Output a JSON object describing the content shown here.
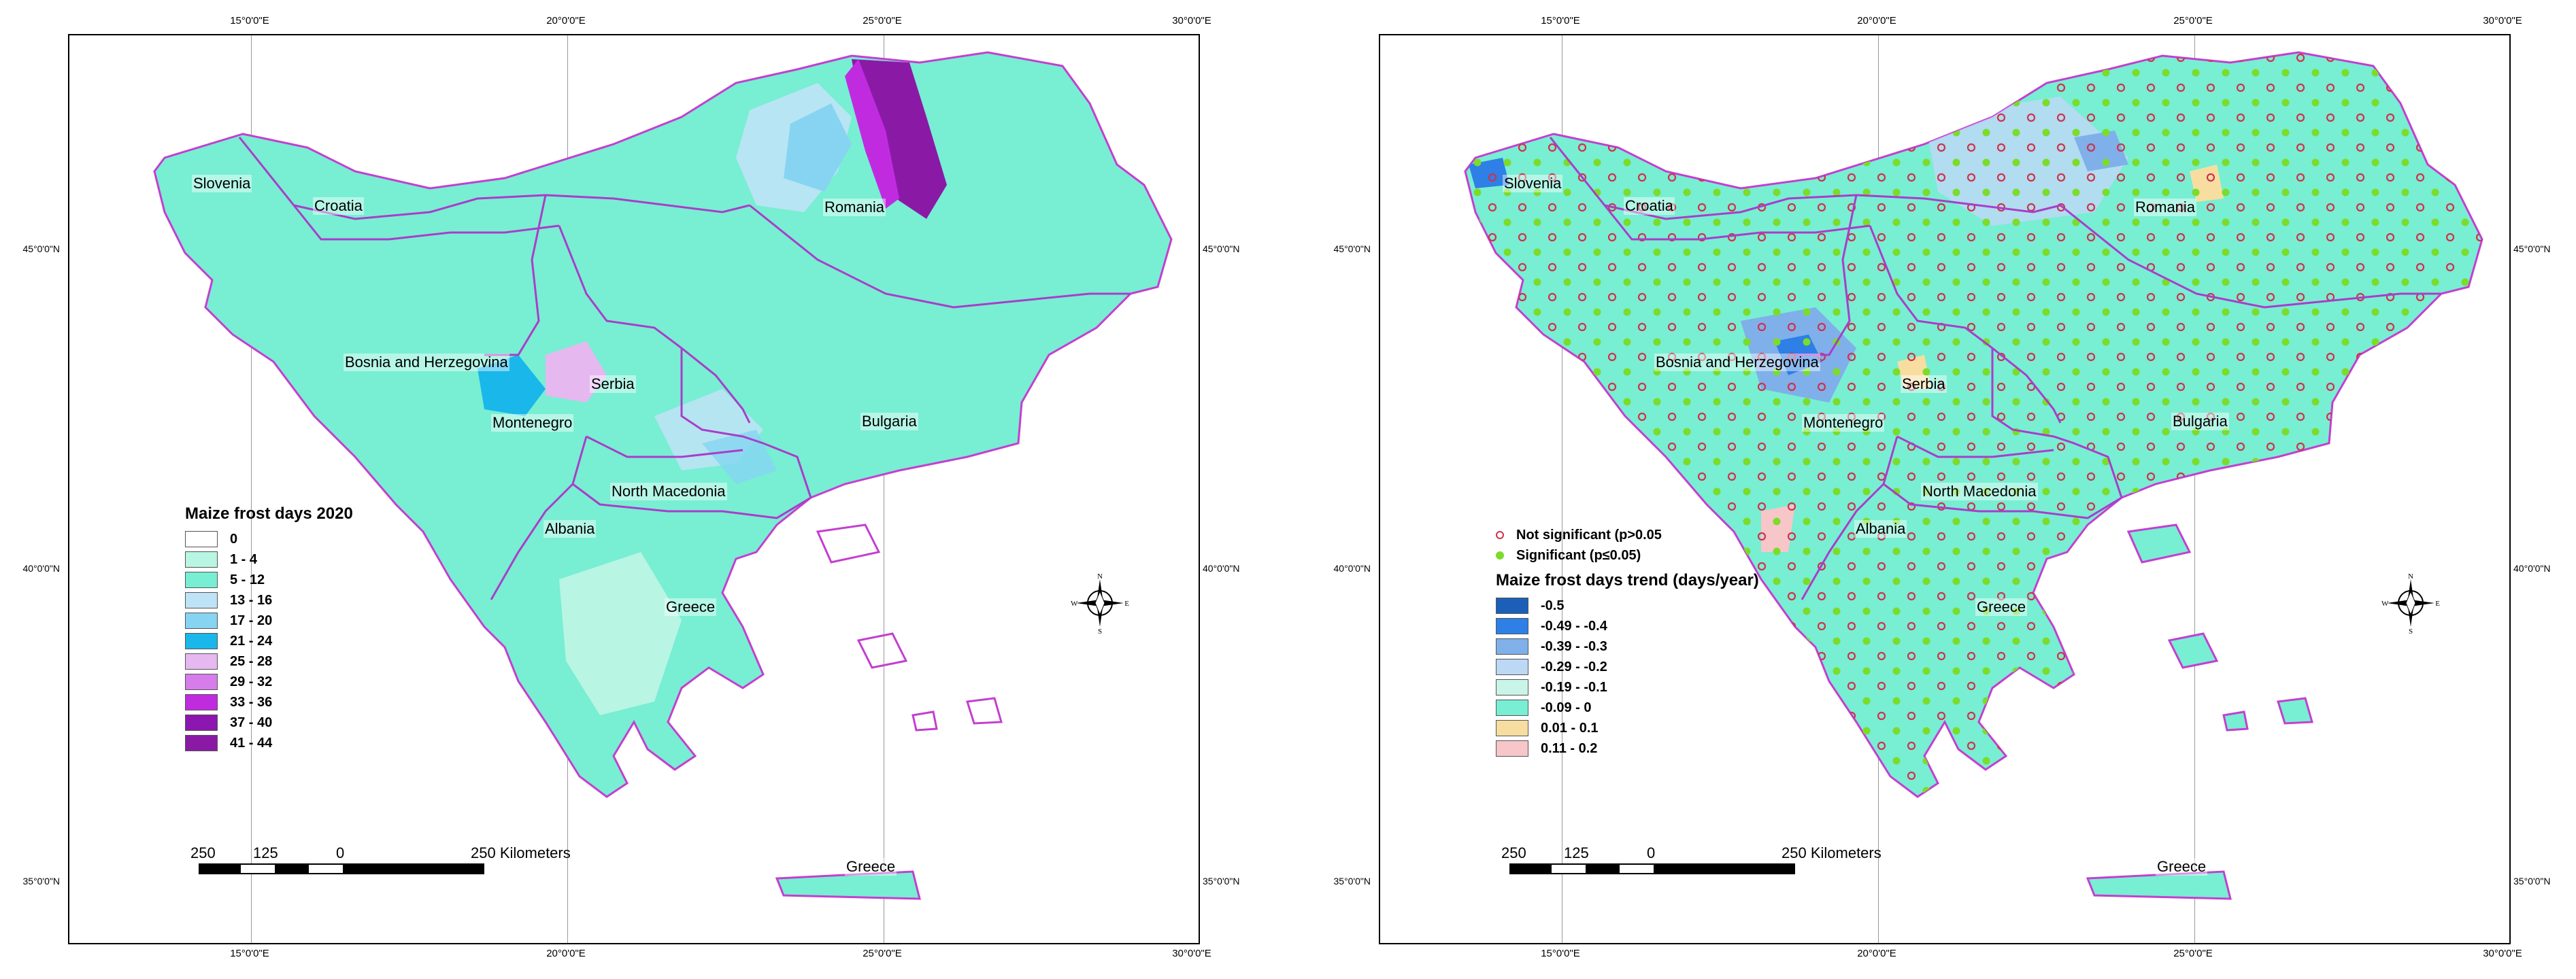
{
  "colors": {
    "land_base": "#78eed3",
    "border": "#a83ec9",
    "coast": "#c33fcf"
  },
  "graticule": {
    "top_labels": [
      "15°0'0\"E",
      "20°0'0\"E",
      "25°0'0\"E",
      "30°0'0\"E"
    ],
    "bottom_labels": [
      "15°0'0\"E",
      "20°0'0\"E",
      "25°0'0\"E",
      "30°0'0\"E"
    ],
    "left_labels": [
      "45°0'0\"N",
      "40°0'0\"N",
      "35°0'0\"N"
    ],
    "right_labels": [
      "45°0'0\"N",
      "40°0'0\"N",
      "35°0'0\"N"
    ]
  },
  "left_map": {
    "countries": [
      "Slovenia",
      "Croatia",
      "Romania",
      "Bosnia and Herzegovina",
      "Serbia",
      "Montenegro",
      "Bulgaria",
      "North Macedonia",
      "Albania",
      "Greece",
      "Greece"
    ],
    "legend": {
      "title": "Maize frost days 2020",
      "items": [
        {
          "label": "0",
          "color": "#ffffff"
        },
        {
          "label": "1 - 4",
          "color": "#b8f5e3"
        },
        {
          "label": "5 - 12",
          "color": "#78eed3"
        },
        {
          "label": "13 - 16",
          "color": "#bfe3f6"
        },
        {
          "label": "17 - 20",
          "color": "#86d4f2"
        },
        {
          "label": "21 - 24",
          "color": "#19b7ea"
        },
        {
          "label": "25 - 28",
          "color": "#e6b8f0"
        },
        {
          "label": "29 - 32",
          "color": "#d77ceb"
        },
        {
          "label": "33 - 36",
          "color": "#c12be0"
        },
        {
          "label": "37 - 40",
          "color": "#8b16b0"
        },
        {
          "label": "41 - 44",
          "color": "#8a1aa6"
        }
      ]
    },
    "scale": {
      "labels": [
        "250",
        "125",
        "0",
        "250 Kilometers"
      ]
    },
    "compass": {
      "n": "N",
      "s": "S",
      "e": "E",
      "w": "W"
    }
  },
  "right_map": {
    "countries": [
      "Slovenia",
      "Croatia",
      "Romania",
      "Bosnia and Herzegovina",
      "Serbia",
      "Montenegro",
      "Bulgaria",
      "North Macedonia",
      "Albania",
      "Greece",
      "Greece"
    ],
    "significance": [
      {
        "label": "Not significant (p>0.05",
        "color": "#d0314c"
      },
      {
        "label": "Significant (p≤0.05)",
        "color": "#7bdc2a"
      }
    ],
    "legend": {
      "title": "Maize frost days trend (days/year)",
      "items": [
        {
          "label": "-0.5",
          "color": "#1b5fb8"
        },
        {
          "label": "-0.49 - -0.4",
          "color": "#2e7fe6"
        },
        {
          "label": "-0.39 - -0.3",
          "color": "#7fb0ea"
        },
        {
          "label": "-0.29 - -0.2",
          "color": "#bcd8f4"
        },
        {
          "label": "-0.19 - -0.1",
          "color": "#c9f5e8"
        },
        {
          "label": "-0.09 - 0",
          "color": "#78eed3"
        },
        {
          "label": "0.01 - 0.1",
          "color": "#f7dea0"
        },
        {
          "label": "0.11 - 0.2",
          "color": "#f7c6c8"
        }
      ]
    },
    "scale": {
      "labels": [
        "250",
        "125",
        "0",
        "250 Kilometers"
      ]
    },
    "compass": {
      "n": "N",
      "s": "S",
      "e": "E",
      "w": "W"
    }
  }
}
